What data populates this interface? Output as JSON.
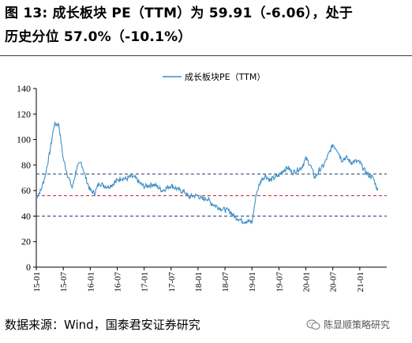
{
  "header": {
    "title_line1": "图 13:  成长板块 PE（TTM）为 59.91（-6.06），处于",
    "title_line2": "历史分位 57.0%（-10.1%）"
  },
  "footer": {
    "source": "数据来源：Wind，国泰君安证券研究",
    "watermark": "陈显顺策略研究",
    "watermark_icon": "wechat-icon"
  },
  "colors": {
    "series": "#3f8fc6",
    "upper_line": "#1f3d6b",
    "median_line": "#c0212a",
    "lower_line": "#1f3d6b"
  },
  "chart_data": {
    "type": "line",
    "title": "",
    "xlabel": "",
    "ylabel": "",
    "ylim": [
      0,
      140
    ],
    "yticks": [
      0,
      20,
      40,
      60,
      80,
      100,
      120,
      140
    ],
    "xtick_labels": [
      "15-01",
      "15-07",
      "16-01",
      "16-07",
      "17-01",
      "17-07",
      "18-01",
      "18-07",
      "19-01",
      "19-07",
      "20-01",
      "20-07",
      "21-01"
    ],
    "legend": {
      "position": "top-center"
    },
    "grid": false,
    "series": [
      {
        "name": "成长板块PE（TTM）",
        "x": [
          "2015-01",
          "2015-02",
          "2015-03",
          "2015-04",
          "2015-05",
          "2015-06",
          "2015-07",
          "2015-08",
          "2015-09",
          "2015-10",
          "2015-11",
          "2015-12",
          "2016-01",
          "2016-02",
          "2016-03",
          "2016-04",
          "2016-05",
          "2016-06",
          "2016-07",
          "2016-08",
          "2016-09",
          "2016-10",
          "2016-11",
          "2016-12",
          "2017-01",
          "2017-02",
          "2017-03",
          "2017-04",
          "2017-05",
          "2017-06",
          "2017-07",
          "2017-08",
          "2017-09",
          "2017-10",
          "2017-11",
          "2017-12",
          "2018-01",
          "2018-02",
          "2018-03",
          "2018-04",
          "2018-05",
          "2018-06",
          "2018-07",
          "2018-08",
          "2018-09",
          "2018-10",
          "2018-11",
          "2018-12",
          "2019-01",
          "2019-02",
          "2019-03",
          "2019-04",
          "2019-05",
          "2019-06",
          "2019-07",
          "2019-08",
          "2019-09",
          "2019-10",
          "2019-11",
          "2019-12",
          "2020-01",
          "2020-02",
          "2020-03",
          "2020-04",
          "2020-05",
          "2020-06",
          "2020-07",
          "2020-08",
          "2020-09",
          "2020-10",
          "2020-11",
          "2020-12",
          "2021-01",
          "2021-02",
          "2021-03",
          "2021-04",
          "2021-05"
        ],
        "values": [
          55,
          60,
          72,
          90,
          112,
          112,
          85,
          72,
          62,
          78,
          82,
          70,
          60,
          58,
          66,
          64,
          63,
          65,
          68,
          70,
          69,
          71,
          70,
          66,
          63,
          64,
          65,
          63,
          60,
          62,
          64,
          62,
          60,
          59,
          55,
          56,
          56,
          53,
          54,
          50,
          48,
          46,
          45,
          44,
          40,
          38,
          36,
          36,
          35,
          58,
          68,
          72,
          68,
          70,
          72,
          76,
          78,
          74,
          76,
          78,
          85,
          80,
          70,
          76,
          80,
          88,
          96,
          92,
          84,
          86,
          82,
          83,
          82,
          76,
          72,
          70,
          60
        ]
      }
    ],
    "reference_lines": [
      {
        "name": "upper",
        "value": 73,
        "style": "dashed"
      },
      {
        "name": "median",
        "value": 56,
        "style": "dashed"
      },
      {
        "name": "lower",
        "value": 40,
        "style": "dashed"
      }
    ]
  }
}
